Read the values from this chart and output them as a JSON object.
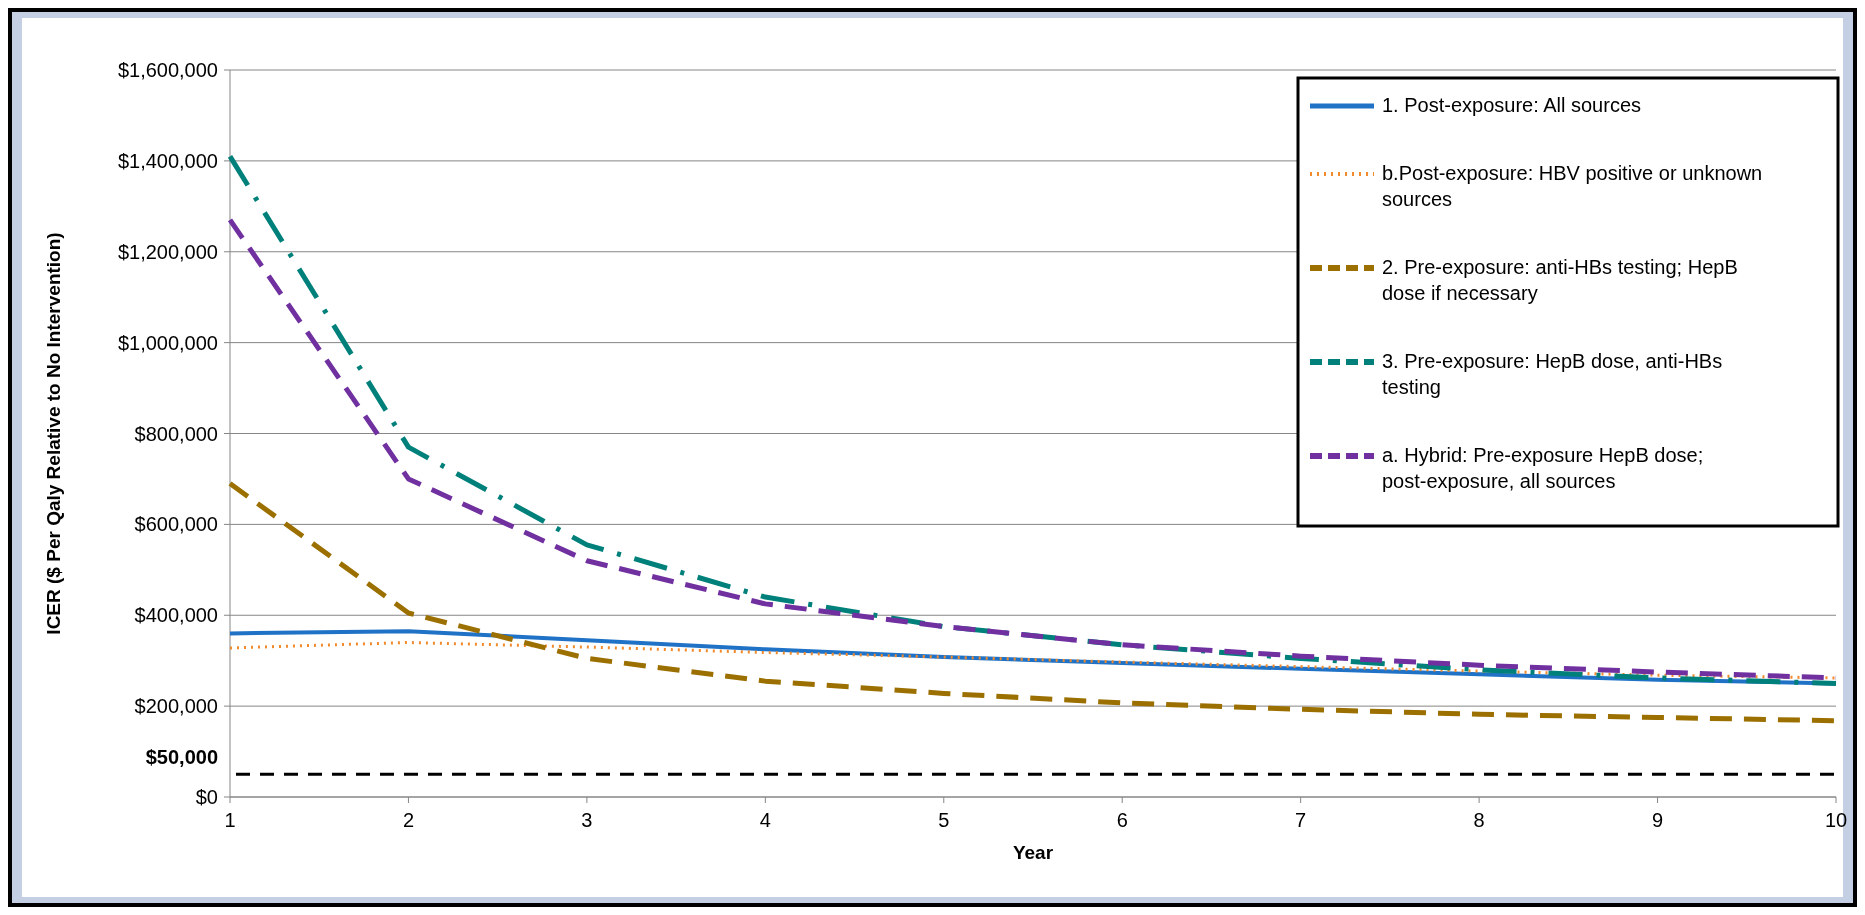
{
  "chart_data": {
    "type": "line",
    "xlabel": "Year",
    "ylabel": "ICER ($ Per Qaly Relative to No Intervention)",
    "x": [
      1,
      2,
      3,
      4,
      5,
      6,
      7,
      8,
      9,
      10
    ],
    "xlim": [
      1,
      10
    ],
    "xticks": [
      1,
      2,
      3,
      4,
      5,
      6,
      7,
      8,
      9,
      10
    ],
    "ylim": [
      0,
      1600000
    ],
    "yticks": [
      {
        "value": 0,
        "label": "$0"
      },
      {
        "value": 200000,
        "label": "$200,000"
      },
      {
        "value": 400000,
        "label": "$400,000"
      },
      {
        "value": 600000,
        "label": "$600,000"
      },
      {
        "value": 800000,
        "label": "$800,000"
      },
      {
        "value": 1000000,
        "label": "$1,000,000"
      },
      {
        "value": 1200000,
        "label": "$1,200,000"
      },
      {
        "value": 1400000,
        "label": "$1,400,000"
      },
      {
        "value": 1600000,
        "label": "$1,600,000"
      }
    ],
    "grid": "y",
    "legend": "top right",
    "marker": "none",
    "ref_lines": [
      {
        "axis": "y",
        "value": 50000,
        "label": "$50,000",
        "color": "#000000",
        "line_style": "dashed"
      }
    ],
    "series": [
      {
        "name": "1. Post-exposure: All sources",
        "color": "#1f72c6",
        "line_style": "solid",
        "values": [
          360000,
          365000,
          345000,
          325000,
          308000,
          295000,
          282000,
          270000,
          258000,
          250000
        ]
      },
      {
        "name": "b.Post-exposure: HBV positive or unknown sources",
        "color": "#f08a2c",
        "line_style": "dotted",
        "values": [
          328000,
          340000,
          330000,
          318000,
          308000,
          297000,
          287000,
          277000,
          268000,
          262000
        ]
      },
      {
        "name": "2. Pre-exposure:  anti-HBs testing; HepB dose if necessary",
        "color": "#9c7000",
        "line_style": "dashed",
        "values": [
          690000,
          405000,
          305000,
          255000,
          228000,
          207000,
          193000,
          182000,
          175000,
          168000
        ]
      },
      {
        "name": "3. Pre-exposure: HepB dose, anti-HBs testing",
        "color": "#00807a",
        "line_style": "dashdot",
        "values": [
          1410000,
          770000,
          555000,
          440000,
          375000,
          335000,
          305000,
          280000,
          262000,
          250000
        ]
      },
      {
        "name": "a. Hybrid: Pre-exposure HepB dose; post-exposure, all sources",
        "color": "#7030a0",
        "line_style": "dashed",
        "values": [
          1270000,
          700000,
          520000,
          425000,
          375000,
          335000,
          310000,
          290000,
          275000,
          262000
        ]
      }
    ]
  }
}
